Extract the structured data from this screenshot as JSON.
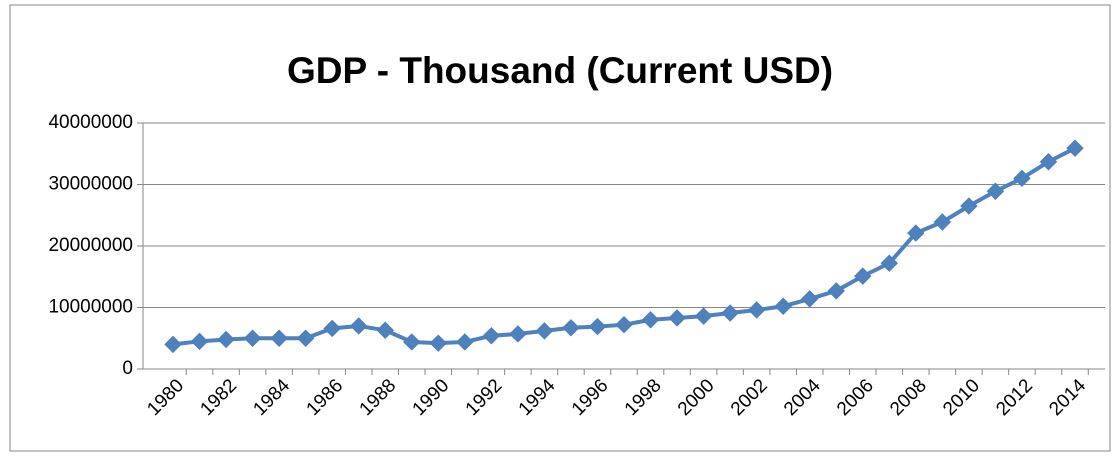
{
  "chart_data": {
    "type": "line",
    "title": "GDP - Thousand (Current USD)",
    "categories": [
      "1980",
      null,
      "1982",
      null,
      "1984",
      null,
      "1986",
      null,
      "1988",
      null,
      "1990",
      null,
      "1992",
      null,
      "1994",
      null,
      "1996",
      null,
      "1998",
      null,
      "2000",
      null,
      "2002",
      null,
      "2004",
      null,
      "2006",
      null,
      "2008",
      null,
      "2010",
      null,
      "2012",
      null,
      "2014"
    ],
    "values": [
      4000000,
      4500000,
      4800000,
      5000000,
      5000000,
      5000000,
      6600000,
      7000000,
      6300000,
      4400000,
      4200000,
      4400000,
      5400000,
      5700000,
      6200000,
      6700000,
      6900000,
      7200000,
      8000000,
      8300000,
      8600000,
      9100000,
      9600000,
      10200000,
      11400000,
      12700000,
      15100000,
      17200000,
      22100000,
      23900000,
      26500000,
      28900000,
      31000000,
      33700000,
      35900000
    ],
    "color": "#4f81bd",
    "ylim": [
      0,
      40000000
    ],
    "yticks": [
      0,
      10000000,
      20000000,
      30000000,
      40000000
    ],
    "grid": true
  }
}
